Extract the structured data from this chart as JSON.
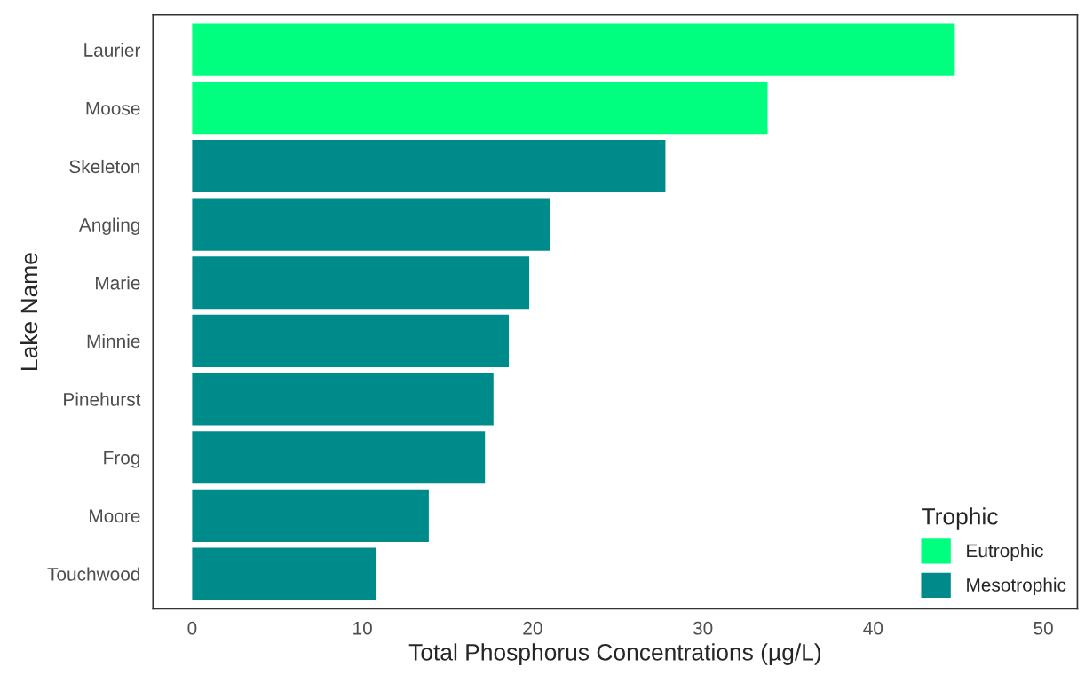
{
  "chart_data": {
    "type": "bar",
    "orientation": "horizontal",
    "xlabel": "Total Phosphorus Concentrations (µg/L)",
    "ylabel": "Lake Name",
    "legend_title": "Trophic",
    "categories": [
      "Laurier",
      "Moose",
      "Skeleton",
      "Angling",
      "Marie",
      "Minnie",
      "Pinehurst",
      "Frog",
      "Moore",
      "Touchwood"
    ],
    "series": [
      {
        "name": "Eutrophic",
        "color": "#00ff7f",
        "values": [
          44.8,
          33.8,
          null,
          null,
          null,
          null,
          null,
          null,
          null,
          null
        ]
      },
      {
        "name": "Mesotrophic",
        "color": "#008b8b",
        "values": [
          null,
          null,
          27.8,
          21.0,
          19.8,
          18.6,
          17.7,
          17.2,
          13.9,
          10.8
        ]
      }
    ],
    "xlim": [
      -2.3,
      52
    ],
    "xticks": [
      0,
      10,
      20,
      30,
      40,
      50
    ],
    "grid": false,
    "legend": "bottom right"
  }
}
